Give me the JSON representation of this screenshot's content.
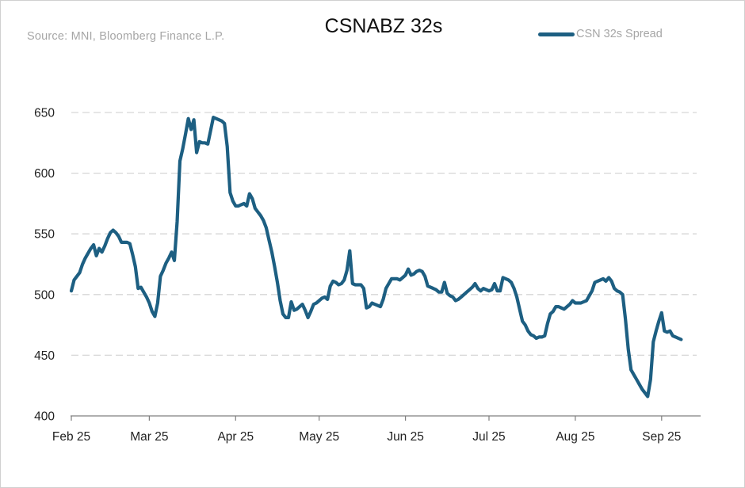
{
  "chart_data": {
    "type": "line",
    "title": "CSNABZ 32s",
    "source": "Source: MNI, Bloomberg Finance L.P.",
    "xlabel": "",
    "ylabel": "",
    "ylim": [
      400,
      650
    ],
    "yticks": [
      400,
      450,
      500,
      550,
      600,
      650
    ],
    "xticks": [
      {
        "label": "Feb 25",
        "day": 0
      },
      {
        "label": "Mar 25",
        "day": 28
      },
      {
        "label": "Apr 25",
        "day": 59
      },
      {
        "label": "May 25",
        "day": 89
      },
      {
        "label": "Jun 25",
        "day": 120
      },
      {
        "label": "Jul 25",
        "day": 150
      },
      {
        "label": "Aug 25",
        "day": 181
      },
      {
        "label": "Sep 25",
        "day": 212
      }
    ],
    "xlim": [
      0,
      226
    ],
    "grid": "horizontal dashed",
    "legend_position": "top-right",
    "series": [
      {
        "name": "CSN 32s Spread",
        "color": "#1d5f82",
        "points": [
          [
            0,
            503
          ],
          [
            1,
            512
          ],
          [
            2,
            515
          ],
          [
            3,
            518
          ],
          [
            4,
            525
          ],
          [
            5,
            530
          ],
          [
            6,
            534
          ],
          [
            7,
            538
          ],
          [
            8,
            541
          ],
          [
            9,
            532
          ],
          [
            10,
            538
          ],
          [
            11,
            535
          ],
          [
            12,
            540
          ],
          [
            13,
            546
          ],
          [
            14,
            551
          ],
          [
            15,
            553
          ],
          [
            16,
            551
          ],
          [
            17,
            548
          ],
          [
            18,
            543
          ],
          [
            19,
            543
          ],
          [
            20,
            543
          ],
          [
            21,
            542
          ],
          [
            22,
            533
          ],
          [
            23,
            523
          ],
          [
            24,
            505
          ],
          [
            25,
            506
          ],
          [
            26,
            502
          ],
          [
            27,
            498
          ],
          [
            28,
            493
          ],
          [
            29,
            486
          ],
          [
            30,
            482
          ],
          [
            31,
            493
          ],
          [
            32,
            515
          ],
          [
            33,
            520
          ],
          [
            34,
            526
          ],
          [
            35,
            530
          ],
          [
            36,
            535
          ],
          [
            37,
            528
          ],
          [
            38,
            560
          ],
          [
            39,
            610
          ],
          [
            40,
            620
          ],
          [
            41,
            632
          ],
          [
            42,
            645
          ],
          [
            43,
            636
          ],
          [
            44,
            644
          ],
          [
            45,
            617
          ],
          [
            46,
            626
          ],
          [
            47,
            625
          ],
          [
            48,
            625
          ],
          [
            49,
            624
          ],
          [
            50,
            635
          ],
          [
            51,
            646
          ],
          [
            52,
            645
          ],
          [
            53,
            644
          ],
          [
            54,
            643
          ],
          [
            55,
            641
          ],
          [
            56,
            622
          ],
          [
            57,
            584
          ],
          [
            58,
            577
          ],
          [
            59,
            573
          ],
          [
            60,
            573
          ],
          [
            61,
            574
          ],
          [
            62,
            575
          ],
          [
            63,
            573
          ],
          [
            64,
            583
          ],
          [
            65,
            579
          ],
          [
            66,
            571
          ],
          [
            67,
            568
          ],
          [
            68,
            565
          ],
          [
            69,
            561
          ],
          [
            70,
            555
          ],
          [
            71,
            545
          ],
          [
            72,
            535
          ],
          [
            73,
            523
          ],
          [
            74,
            510
          ],
          [
            75,
            495
          ],
          [
            76,
            484
          ],
          [
            77,
            481
          ],
          [
            78,
            481
          ],
          [
            79,
            494
          ],
          [
            80,
            487
          ],
          [
            81,
            488
          ],
          [
            82,
            490
          ],
          [
            83,
            492
          ],
          [
            84,
            487
          ],
          [
            85,
            481
          ],
          [
            86,
            486
          ],
          [
            87,
            492
          ],
          [
            88,
            493
          ],
          [
            89,
            495
          ],
          [
            90,
            497
          ],
          [
            91,
            498
          ],
          [
            92,
            496
          ],
          [
            93,
            507
          ],
          [
            94,
            511
          ],
          [
            95,
            510
          ],
          [
            96,
            508
          ],
          [
            97,
            509
          ],
          [
            98,
            512
          ],
          [
            99,
            520
          ],
          [
            100,
            536
          ],
          [
            101,
            509
          ],
          [
            102,
            508
          ],
          [
            103,
            508
          ],
          [
            104,
            508
          ],
          [
            105,
            505
          ],
          [
            106,
            489
          ],
          [
            107,
            490
          ],
          [
            108,
            493
          ],
          [
            109,
            492
          ],
          [
            110,
            491
          ],
          [
            111,
            490
          ],
          [
            112,
            496
          ],
          [
            113,
            505
          ],
          [
            114,
            509
          ],
          [
            115,
            513
          ],
          [
            116,
            513
          ],
          [
            117,
            513
          ],
          [
            118,
            512
          ],
          [
            119,
            514
          ],
          [
            120,
            516
          ],
          [
            121,
            521
          ],
          [
            122,
            516
          ],
          [
            123,
            517
          ],
          [
            124,
            519
          ],
          [
            125,
            520
          ],
          [
            126,
            519
          ],
          [
            127,
            515
          ],
          [
            128,
            507
          ],
          [
            129,
            506
          ],
          [
            130,
            505
          ],
          [
            131,
            504
          ],
          [
            132,
            502
          ],
          [
            133,
            502
          ],
          [
            134,
            510
          ],
          [
            135,
            501
          ],
          [
            136,
            499
          ],
          [
            137,
            498
          ],
          [
            138,
            495
          ],
          [
            139,
            496
          ],
          [
            140,
            498
          ],
          [
            141,
            500
          ],
          [
            142,
            502
          ],
          [
            143,
            504
          ],
          [
            144,
            506
          ],
          [
            145,
            509
          ],
          [
            146,
            505
          ],
          [
            147,
            503
          ],
          [
            148,
            505
          ],
          [
            149,
            504
          ],
          [
            150,
            503
          ],
          [
            151,
            504
          ],
          [
            152,
            509
          ],
          [
            153,
            503
          ],
          [
            154,
            503
          ],
          [
            155,
            514
          ],
          [
            156,
            513
          ],
          [
            157,
            512
          ],
          [
            158,
            510
          ],
          [
            159,
            505
          ],
          [
            160,
            498
          ],
          [
            161,
            488
          ],
          [
            162,
            478
          ],
          [
            163,
            475
          ],
          [
            164,
            470
          ],
          [
            165,
            467
          ],
          [
            166,
            466
          ],
          [
            167,
            464
          ],
          [
            168,
            465
          ],
          [
            169,
            465
          ],
          [
            170,
            466
          ],
          [
            171,
            476
          ],
          [
            172,
            484
          ],
          [
            173,
            486
          ],
          [
            174,
            490
          ],
          [
            175,
            490
          ],
          [
            176,
            489
          ],
          [
            177,
            488
          ],
          [
            178,
            490
          ],
          [
            179,
            492
          ],
          [
            180,
            495
          ],
          [
            181,
            493
          ],
          [
            182,
            493
          ],
          [
            183,
            493
          ],
          [
            184,
            494
          ],
          [
            185,
            495
          ],
          [
            186,
            499
          ],
          [
            187,
            503
          ],
          [
            188,
            510
          ],
          [
            189,
            511
          ],
          [
            190,
            512
          ],
          [
            191,
            513
          ],
          [
            192,
            511
          ],
          [
            193,
            514
          ],
          [
            194,
            511
          ],
          [
            195,
            505
          ],
          [
            196,
            503
          ],
          [
            197,
            502
          ],
          [
            198,
            500
          ],
          [
            199,
            480
          ],
          [
            200,
            455
          ],
          [
            201,
            438
          ],
          [
            202,
            434
          ],
          [
            203,
            430
          ],
          [
            204,
            426
          ],
          [
            205,
            422
          ],
          [
            206,
            419
          ],
          [
            207,
            416
          ],
          [
            208,
            430
          ],
          [
            209,
            461
          ],
          [
            210,
            470
          ],
          [
            211,
            478
          ],
          [
            212,
            485
          ],
          [
            213,
            470
          ],
          [
            214,
            469
          ],
          [
            215,
            470
          ],
          [
            216,
            466
          ],
          [
            217,
            465
          ],
          [
            218,
            464
          ],
          [
            219,
            463
          ]
        ]
      }
    ]
  }
}
